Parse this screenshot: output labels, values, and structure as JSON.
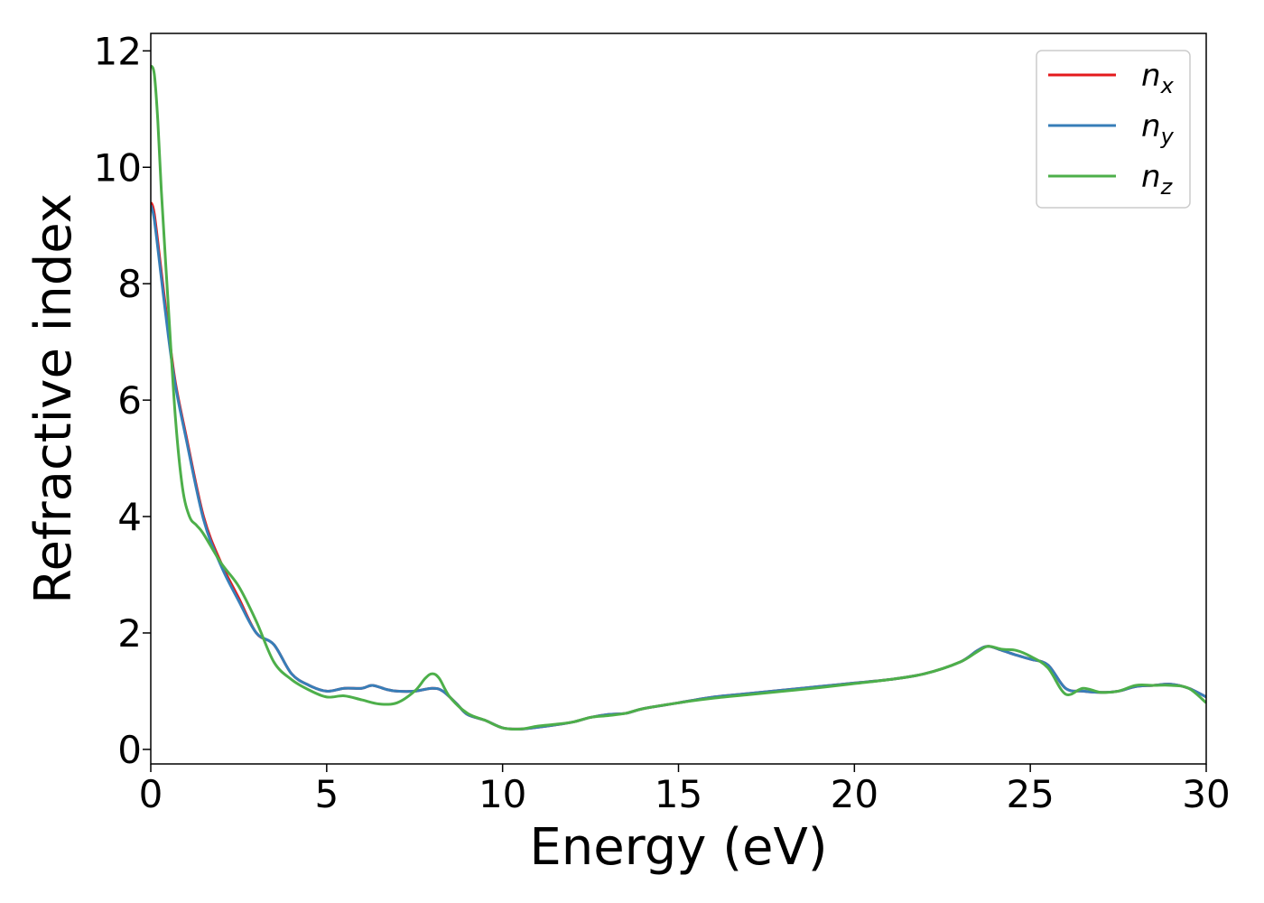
{
  "chart_data": {
    "type": "line",
    "title": "",
    "xlabel": "Energy (eV)",
    "ylabel": "Refractive index",
    "xlim": [
      0,
      30
    ],
    "ylim": [
      -0.25,
      12.3
    ],
    "xticks": [
      0,
      5,
      10,
      15,
      20,
      25,
      30
    ],
    "yticks": [
      0,
      2,
      4,
      6,
      8,
      10,
      12
    ],
    "grid": false,
    "legend_position": "top-right",
    "series": [
      {
        "name": "n",
        "subscript": "x",
        "color": "#e41a1c",
        "x": [
          0,
          0.1,
          0.3,
          0.5,
          0.7,
          1.0,
          1.5,
          2.0,
          2.5,
          3.0,
          3.5,
          4.0,
          4.5,
          5.0,
          5.5,
          6.0,
          6.3,
          6.7,
          7.0,
          7.5,
          8.0,
          8.3,
          8.7,
          9.0,
          9.5,
          10.0,
          10.5,
          11.0,
          11.5,
          12.0,
          12.5,
          13.0,
          13.5,
          14.0,
          15.0,
          16.0,
          17.0,
          18.0,
          19.0,
          20.0,
          21.0,
          22.0,
          23.0,
          23.5,
          23.8,
          24.2,
          24.6,
          25.0,
          25.5,
          26.0,
          26.5,
          27.0,
          27.5,
          28.0,
          28.5,
          29.0,
          29.5,
          30.0
        ],
        "y": [
          9.4,
          9.2,
          8.2,
          7.2,
          6.3,
          5.4,
          4.0,
          3.2,
          2.6,
          2.0,
          1.8,
          1.3,
          1.1,
          1.0,
          1.05,
          1.05,
          1.1,
          1.03,
          1.0,
          1.0,
          1.05,
          1.0,
          0.78,
          0.6,
          0.5,
          0.37,
          0.35,
          0.38,
          0.42,
          0.47,
          0.55,
          0.6,
          0.62,
          0.7,
          0.8,
          0.9,
          0.96,
          1.02,
          1.08,
          1.14,
          1.2,
          1.3,
          1.5,
          1.7,
          1.77,
          1.7,
          1.62,
          1.55,
          1.45,
          1.05,
          1.0,
          0.98,
          1.0,
          1.08,
          1.1,
          1.12,
          1.05,
          0.9
        ]
      },
      {
        "name": "n",
        "subscript": "y",
        "color": "#377eb8",
        "x": [
          0,
          0.1,
          0.3,
          0.5,
          0.7,
          1.0,
          1.5,
          2.0,
          2.5,
          3.0,
          3.5,
          4.0,
          4.5,
          5.0,
          5.5,
          6.0,
          6.3,
          6.7,
          7.0,
          7.5,
          8.0,
          8.3,
          8.7,
          9.0,
          9.5,
          10.0,
          10.5,
          11.0,
          11.5,
          12.0,
          12.5,
          13.0,
          13.5,
          14.0,
          15.0,
          16.0,
          17.0,
          18.0,
          19.0,
          20.0,
          21.0,
          22.0,
          23.0,
          23.5,
          23.8,
          24.2,
          24.6,
          25.0,
          25.5,
          26.0,
          26.5,
          27.0,
          27.5,
          28.0,
          28.5,
          29.0,
          29.5,
          30.0
        ],
        "y": [
          9.35,
          9.1,
          8.1,
          7.1,
          6.25,
          5.35,
          3.95,
          3.15,
          2.55,
          2.0,
          1.8,
          1.3,
          1.1,
          1.0,
          1.05,
          1.05,
          1.1,
          1.03,
          1.0,
          1.0,
          1.05,
          1.0,
          0.78,
          0.6,
          0.5,
          0.37,
          0.35,
          0.38,
          0.42,
          0.47,
          0.55,
          0.6,
          0.62,
          0.7,
          0.8,
          0.9,
          0.96,
          1.02,
          1.08,
          1.14,
          1.2,
          1.3,
          1.5,
          1.7,
          1.77,
          1.7,
          1.62,
          1.55,
          1.45,
          1.05,
          1.0,
          0.98,
          1.0,
          1.08,
          1.1,
          1.12,
          1.05,
          0.9
        ]
      },
      {
        "name": "n",
        "subscript": "z",
        "color": "#4daf4a",
        "x": [
          0,
          0.1,
          0.2,
          0.3,
          0.5,
          0.7,
          0.9,
          1.1,
          1.3,
          1.5,
          2.0,
          2.5,
          3.0,
          3.5,
          4.0,
          4.5,
          5.0,
          5.5,
          6.0,
          6.5,
          7.0,
          7.5,
          7.8,
          8.0,
          8.2,
          8.5,
          9.0,
          9.5,
          10.0,
          10.5,
          11.0,
          11.5,
          12.0,
          12.5,
          13.0,
          13.5,
          14.0,
          15.0,
          16.0,
          17.0,
          18.0,
          19.0,
          20.0,
          21.0,
          22.0,
          23.0,
          23.5,
          23.8,
          24.2,
          24.6,
          25.0,
          25.5,
          26.0,
          26.5,
          27.0,
          27.5,
          28.0,
          28.5,
          29.0,
          29.5,
          30.0
        ],
        "y": [
          11.75,
          11.6,
          10.8,
          9.6,
          7.6,
          5.7,
          4.5,
          4.0,
          3.85,
          3.7,
          3.2,
          2.8,
          2.2,
          1.5,
          1.2,
          1.02,
          0.9,
          0.92,
          0.85,
          0.78,
          0.8,
          1.0,
          1.22,
          1.3,
          1.22,
          0.9,
          0.62,
          0.5,
          0.37,
          0.35,
          0.4,
          0.43,
          0.47,
          0.55,
          0.58,
          0.62,
          0.7,
          0.8,
          0.88,
          0.94,
          1.0,
          1.06,
          1.13,
          1.2,
          1.3,
          1.5,
          1.68,
          1.77,
          1.72,
          1.7,
          1.6,
          1.4,
          0.95,
          1.05,
          0.98,
          1.0,
          1.1,
          1.1,
          1.1,
          1.05,
          0.8
        ]
      }
    ]
  }
}
